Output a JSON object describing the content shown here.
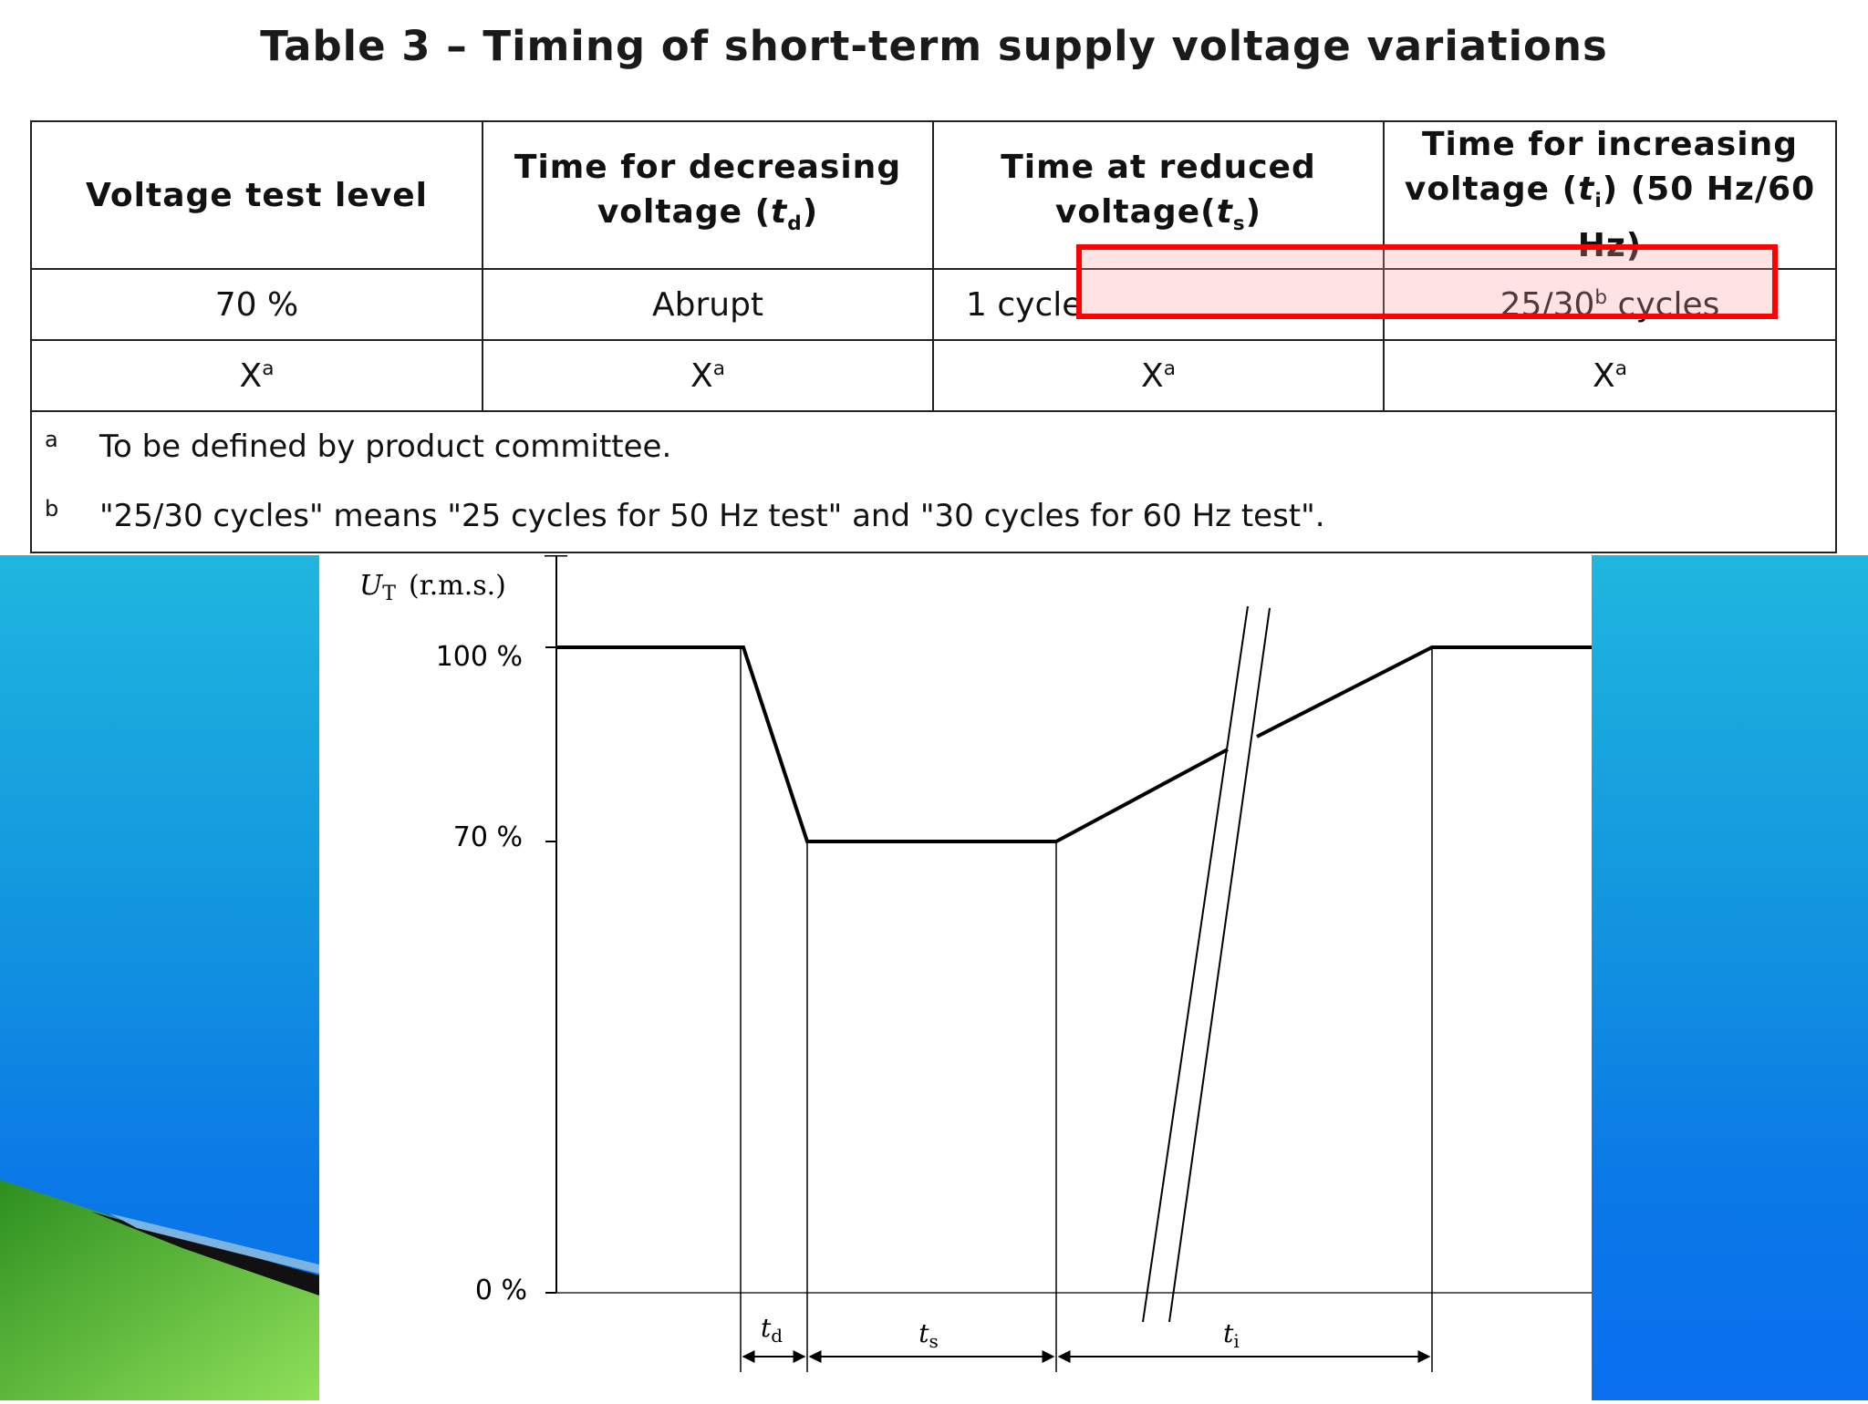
{
  "title": "Table 3 – Timing of short-term supply voltage variations",
  "table": {
    "headers": {
      "col1": "Voltage test level",
      "col2_line1": "Time for decreasing",
      "col2_line2_pre": "voltage (",
      "col2_var": "t",
      "col2_sub": "d",
      "col2_post": ")",
      "col3_line1": "Time at reduced",
      "col3_line2_pre": "voltage(",
      "col3_var": "t",
      "col3_sub": "s",
      "col3_post": ")",
      "col4_line1": "Time for increasing",
      "col4_line2_pre": "voltage (",
      "col4_var": "t",
      "col4_sub": "i",
      "col4_post": ") (50 Hz/60 Hz)"
    },
    "row1": {
      "level": "70 %",
      "decreasing": "Abrupt",
      "reduced": "1 cycle",
      "increasing_pre": "25/30",
      "increasing_sup": "b",
      "increasing_post": " cycles"
    },
    "row2": {
      "value": "X",
      "sup": "a"
    },
    "footnotes": [
      {
        "mark": "a",
        "text": "To be defined by product committee."
      },
      {
        "mark": "b",
        "text": "\"25/30 cycles\" means \"25 cycles for 50 Hz test\" and \"30 cycles for 60 Hz test\"."
      }
    ]
  },
  "diagram": {
    "ylabel_var": "U",
    "ylabel_sub": "T",
    "ylabel_unit": "(r.m.s.)",
    "levels": [
      "100 %",
      "70 %",
      "0 %"
    ],
    "level_values": [
      100,
      70,
      0
    ],
    "interval_labels": [
      {
        "var": "t",
        "sub": "d"
      },
      {
        "var": "t",
        "sub": "s"
      },
      {
        "var": "t",
        "sub": "i"
      }
    ]
  },
  "colors": {
    "highlight_border": "#ff0000",
    "highlight_fill": "#ffd6d6",
    "deco_blue": "#0a78e6",
    "deco_green": "#7ccf3a"
  }
}
